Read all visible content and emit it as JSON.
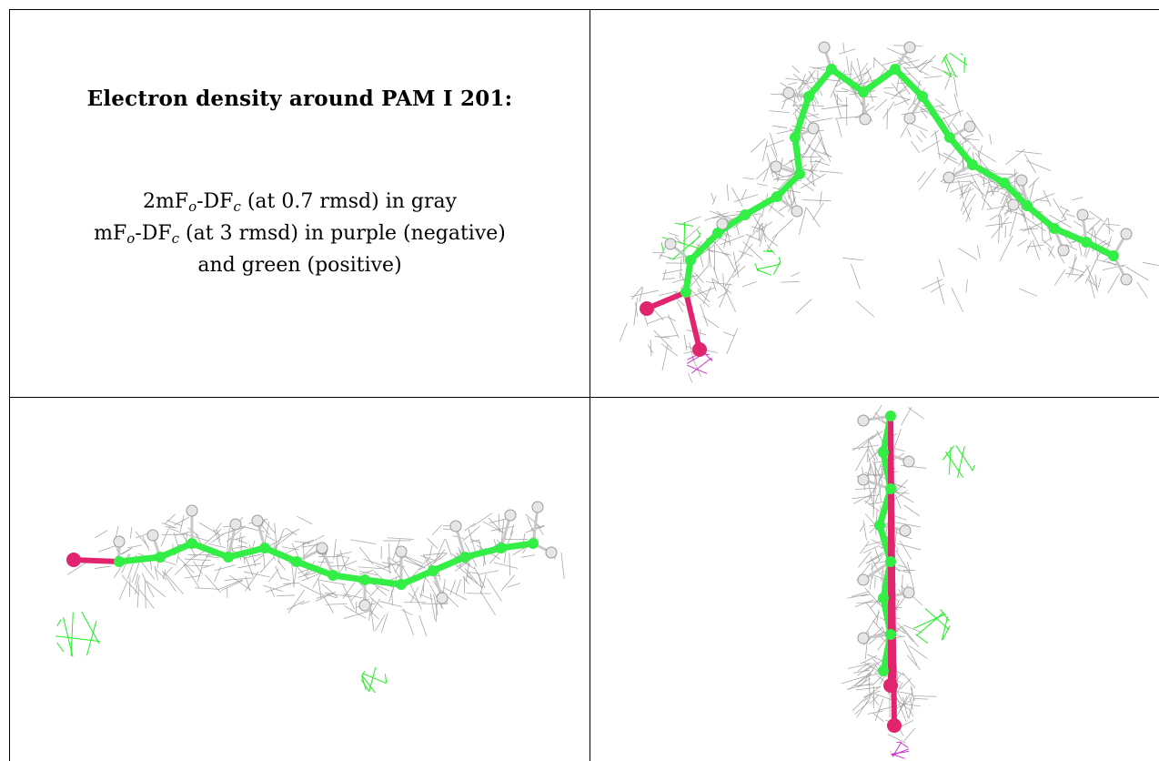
{
  "caption": {
    "title": "Electron density around PAM I 201:",
    "line1": {
      "pre": "2mF",
      "sub_o": "o",
      "mid": "-DF",
      "sub_c": "c",
      "post": " (at 0.7 rmsd) in gray"
    },
    "line2": {
      "pre": "mF",
      "sub_o": "o",
      "mid": "-DF",
      "sub_c": "c",
      "post": " (at 3 rmsd) in purple (negative)"
    },
    "line3": "and green (positive)"
  },
  "colors": {
    "mesh_gray": "#9a9a9a",
    "carbon_green": "#33ee44",
    "hydrogen_white": "#e6e6e6",
    "oxygen_pink": "#e0246e",
    "negative_purple": "#cc33cc",
    "positive_green": "#22ee22"
  },
  "views": [
    {
      "name": "view-top-right"
    },
    {
      "name": "view-bottom-left"
    },
    {
      "name": "view-bottom-right"
    }
  ]
}
